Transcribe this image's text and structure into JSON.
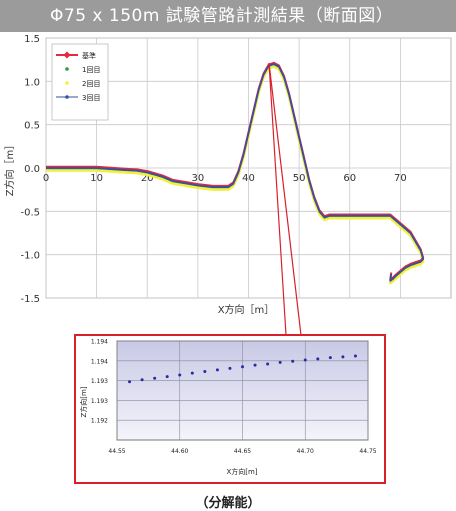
{
  "title": "Φ75 x 150m  試験管路計測結果（断面図）",
  "footer": "（分解能）",
  "chart_data": [
    {
      "type": "line",
      "xlabel": "X方向［m］",
      "ylabel": "Z方向［m］",
      "xlim": [
        0,
        80
      ],
      "ylim": [
        -1.5,
        1.5
      ],
      "xticks": [
        "0",
        "10",
        "20",
        "30",
        "40",
        "50",
        "60",
        "70"
      ],
      "yticks": [
        "1.5",
        "1.0",
        "0.5",
        "0.0",
        "-0.5",
        "-1.0",
        "-1.5"
      ],
      "grid": true,
      "legend_position": "top-left",
      "series": [
        {
          "name": "基準",
          "color": "#e8283c",
          "x": [
            0,
            5,
            10,
            15,
            18,
            20,
            23,
            25,
            28,
            30,
            33,
            36,
            37,
            38,
            39,
            40,
            41,
            42,
            43,
            44,
            45,
            46,
            47,
            48,
            49,
            50,
            51,
            52,
            53,
            54,
            55,
            56,
            58,
            60,
            63,
            66,
            67,
            68,
            70,
            72,
            73,
            74,
            74.5,
            74,
            73,
            72,
            71,
            70,
            69,
            68.5,
            68,
            68.2
          ],
          "y": [
            0.0,
            0.0,
            0.0,
            -0.02,
            -0.03,
            -0.05,
            -0.1,
            -0.15,
            -0.18,
            -0.2,
            -0.22,
            -0.22,
            -0.18,
            -0.05,
            0.15,
            0.4,
            0.65,
            0.9,
            1.08,
            1.18,
            1.2,
            1.17,
            1.05,
            0.85,
            0.6,
            0.35,
            0.1,
            -0.15,
            -0.35,
            -0.5,
            -0.57,
            -0.55,
            -0.55,
            -0.55,
            -0.55,
            -0.55,
            -0.55,
            -0.55,
            -0.65,
            -0.75,
            -0.85,
            -0.95,
            -1.05,
            -1.08,
            -1.1,
            -1.12,
            -1.15,
            -1.2,
            -1.25,
            -1.28,
            -1.3,
            -1.22
          ]
        },
        {
          "name": "1回目",
          "color": "#2e9a3c"
        },
        {
          "name": "2回目",
          "color": "#f4ee3c"
        },
        {
          "name": "3回目",
          "color": "#3a4fa2"
        }
      ]
    },
    {
      "type": "scatter",
      "xlabel": "X方向[m]",
      "ylabel": "Z方向[m]",
      "xlim": [
        44.55,
        44.75
      ],
      "ylim": [
        1.1915,
        1.194
      ],
      "xticks": [
        "44.55",
        "44.60",
        "44.65",
        "44.70",
        "44.75"
      ],
      "yticks": [
        "1.194",
        "1.194",
        "1.193",
        "1.193",
        "1.192"
      ],
      "grid": true,
      "series": [
        {
          "color": "#2a2aa6",
          "x": [
            44.56,
            44.57,
            44.58,
            44.59,
            44.6,
            44.61,
            44.62,
            44.63,
            44.64,
            44.65,
            44.66,
            44.67,
            44.68,
            44.69,
            44.7,
            44.71,
            44.72,
            44.73,
            44.74
          ],
          "y": [
            1.19297,
            1.19302,
            1.19306,
            1.1931,
            1.19314,
            1.19319,
            1.19323,
            1.19327,
            1.19331,
            1.19335,
            1.19339,
            1.19342,
            1.19346,
            1.19349,
            1.19352,
            1.19355,
            1.19358,
            1.1936,
            1.19362
          ]
        }
      ]
    }
  ]
}
